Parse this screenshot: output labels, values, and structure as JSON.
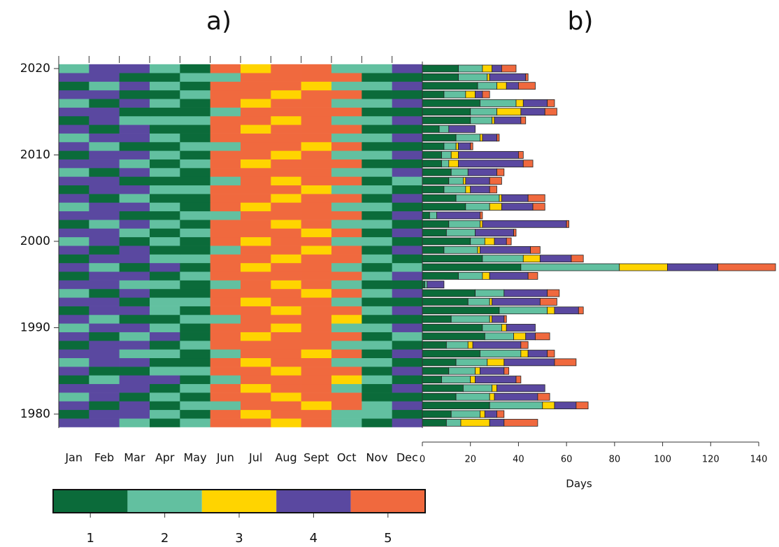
{
  "chart_data": [
    {
      "type": "heatmap",
      "title": "a)",
      "x": [
        "Jan",
        "Feb",
        "Mar",
        "Apr",
        "May",
        "Jun",
        "Jul",
        "Aug",
        "Sept",
        "Oct",
        "Nov",
        "Dec"
      ],
      "y": [
        1979,
        1980,
        1981,
        1982,
        1983,
        1984,
        1985,
        1986,
        1987,
        1988,
        1989,
        1990,
        1991,
        1992,
        1993,
        1994,
        1995,
        1996,
        1997,
        1998,
        1999,
        2000,
        2001,
        2002,
        2003,
        2004,
        2005,
        2006,
        2007,
        2008,
        2009,
        2010,
        2011,
        2012,
        2013,
        2014,
        2015,
        2016,
        2017,
        2018,
        2019,
        2020
      ],
      "ylim": [
        1978.5,
        2020.6
      ],
      "yticks": [
        1980,
        1990,
        2000,
        2010,
        2020
      ],
      "levels": [
        1,
        2,
        3,
        4,
        5
      ],
      "colors": [
        "#0b6b3a",
        "#62c0a0",
        "#ffd400",
        "#5a48a0",
        "#f0693e"
      ],
      "values": [
        [
          4,
          4,
          2,
          1,
          2,
          5,
          5,
          3,
          5,
          2,
          1,
          4
        ],
        [
          1,
          4,
          4,
          2,
          1,
          5,
          3,
          5,
          5,
          2,
          2,
          1
        ],
        [
          4,
          1,
          4,
          1,
          2,
          2,
          5,
          5,
          3,
          5,
          2,
          4
        ],
        [
          2,
          4,
          1,
          2,
          1,
          5,
          5,
          3,
          5,
          5,
          1,
          1
        ],
        [
          4,
          4,
          4,
          1,
          2,
          5,
          3,
          5,
          5,
          2,
          1,
          4
        ],
        [
          1,
          2,
          4,
          4,
          1,
          2,
          5,
          5,
          5,
          3,
          2,
          1
        ],
        [
          4,
          1,
          1,
          2,
          2,
          5,
          5,
          3,
          5,
          5,
          1,
          4
        ],
        [
          2,
          4,
          4,
          1,
          1,
          5,
          3,
          5,
          5,
          2,
          2,
          1
        ],
        [
          4,
          4,
          2,
          2,
          1,
          2,
          5,
          5,
          3,
          5,
          1,
          4
        ],
        [
          1,
          4,
          4,
          1,
          2,
          5,
          5,
          5,
          5,
          2,
          2,
          1
        ],
        [
          4,
          1,
          2,
          4,
          1,
          5,
          3,
          5,
          5,
          5,
          1,
          2
        ],
        [
          2,
          4,
          4,
          2,
          1,
          5,
          5,
          3,
          5,
          2,
          2,
          4
        ],
        [
          4,
          2,
          1,
          1,
          2,
          2,
          5,
          5,
          5,
          3,
          1,
          1
        ],
        [
          1,
          4,
          4,
          2,
          1,
          5,
          5,
          3,
          5,
          5,
          2,
          4
        ],
        [
          4,
          4,
          1,
          2,
          2,
          5,
          3,
          5,
          5,
          2,
          1,
          1
        ],
        [
          2,
          1,
          4,
          1,
          1,
          5,
          5,
          5,
          3,
          5,
          2,
          4
        ],
        [
          4,
          4,
          2,
          2,
          1,
          2,
          5,
          3,
          5,
          2,
          1,
          1
        ],
        [
          1,
          4,
          4,
          1,
          2,
          5,
          5,
          5,
          5,
          5,
          2,
          4
        ],
        [
          4,
          2,
          1,
          4,
          1,
          5,
          3,
          5,
          5,
          2,
          1,
          2
        ],
        [
          1,
          4,
          4,
          2,
          2,
          5,
          5,
          3,
          5,
          5,
          2,
          1
        ],
        [
          4,
          1,
          4,
          1,
          1,
          2,
          5,
          5,
          3,
          5,
          1,
          4
        ],
        [
          2,
          4,
          1,
          2,
          1,
          5,
          3,
          5,
          5,
          2,
          2,
          1
        ],
        [
          4,
          4,
          2,
          1,
          2,
          5,
          5,
          5,
          3,
          5,
          1,
          4
        ],
        [
          1,
          2,
          4,
          2,
          1,
          5,
          5,
          3,
          5,
          2,
          2,
          1
        ],
        [
          4,
          4,
          1,
          1,
          2,
          2,
          5,
          5,
          5,
          5,
          1,
          4
        ],
        [
          2,
          4,
          4,
          2,
          1,
          5,
          3,
          5,
          5,
          2,
          2,
          1
        ],
        [
          4,
          1,
          2,
          1,
          1,
          5,
          5,
          3,
          5,
          5,
          1,
          4
        ],
        [
          1,
          4,
          4,
          2,
          2,
          5,
          5,
          5,
          3,
          2,
          2,
          1
        ],
        [
          4,
          4,
          1,
          1,
          1,
          2,
          5,
          3,
          5,
          5,
          1,
          2
        ],
        [
          2,
          1,
          4,
          2,
          1,
          5,
          5,
          5,
          5,
          2,
          2,
          4
        ],
        [
          4,
          4,
          2,
          1,
          2,
          5,
          3,
          5,
          5,
          5,
          1,
          1
        ],
        [
          1,
          4,
          4,
          2,
          1,
          5,
          5,
          3,
          5,
          2,
          2,
          4
        ],
        [
          4,
          2,
          1,
          1,
          2,
          2,
          5,
          5,
          3,
          5,
          1,
          1
        ],
        [
          2,
          4,
          4,
          2,
          1,
          5,
          5,
          5,
          5,
          2,
          2,
          4
        ],
        [
          4,
          1,
          4,
          1,
          1,
          5,
          3,
          5,
          5,
          5,
          1,
          1
        ],
        [
          1,
          4,
          2,
          2,
          2,
          5,
          5,
          3,
          5,
          2,
          2,
          4
        ],
        [
          4,
          4,
          1,
          1,
          1,
          2,
          5,
          5,
          5,
          5,
          1,
          1
        ],
        [
          2,
          1,
          4,
          2,
          1,
          5,
          3,
          5,
          5,
          2,
          2,
          4
        ],
        [
          4,
          4,
          1,
          1,
          2,
          5,
          5,
          3,
          5,
          5,
          1,
          1
        ],
        [
          1,
          2,
          4,
          2,
          1,
          5,
          5,
          5,
          3,
          2,
          2,
          4
        ],
        [
          4,
          4,
          1,
          1,
          2,
          2,
          5,
          5,
          5,
          5,
          1,
          1
        ],
        [
          2,
          4,
          4,
          2,
          1,
          5,
          3,
          5,
          5,
          2,
          2,
          4
        ]
      ]
    },
    {
      "type": "stacked-barh",
      "title": "b)",
      "xlabel": "Days",
      "y": [
        1979,
        1980,
        1981,
        1982,
        1983,
        1984,
        1985,
        1986,
        1987,
        1988,
        1989,
        1990,
        1991,
        1992,
        1993,
        1994,
        1995,
        1996,
        1997,
        1998,
        1999,
        2000,
        2001,
        2002,
        2003,
        2004,
        2005,
        2006,
        2007,
        2008,
        2009,
        2010,
        2011,
        2012,
        2013,
        2014,
        2015,
        2016,
        2017,
        2018,
        2019,
        2020
      ],
      "ylim": [
        1978.5,
        2020.6
      ],
      "xlim": [
        0,
        140
      ],
      "xticks": [
        0,
        20,
        40,
        60,
        80,
        100,
        120,
        140
      ],
      "series": [
        {
          "color": "#0b6b3a",
          "values": [
            10,
            12,
            28,
            14,
            17,
            8,
            11,
            14,
            24,
            10,
            26,
            25,
            12,
            32,
            19,
            22,
            1,
            15,
            41,
            25,
            9,
            20,
            10,
            11,
            3,
            18,
            14,
            9,
            11,
            12,
            8,
            8,
            9,
            14,
            7,
            20,
            20,
            24,
            9,
            23,
            15,
            15
          ]
        },
        {
          "color": "#62c0a0",
          "values": [
            6,
            12,
            22,
            14,
            12,
            12,
            11,
            13,
            17,
            9,
            12,
            8,
            16,
            20,
            9,
            12,
            1,
            10,
            41,
            17,
            14,
            6,
            12,
            13,
            3,
            10,
            18,
            9,
            6,
            7,
            3,
            4,
            5,
            10,
            4,
            9,
            11,
            15,
            9,
            8,
            12,
            10
          ]
        },
        {
          "color": "#ffd400",
          "values": [
            12,
            2,
            5,
            2,
            2,
            2,
            2,
            7,
            3,
            2,
            5,
            2,
            1,
            3,
            1,
            0,
            0,
            3,
            20,
            7,
            1,
            4,
            0,
            1,
            0,
            5,
            1,
            2,
            1,
            0,
            4,
            3,
            1,
            1,
            0,
            1,
            10,
            3,
            4,
            4,
            1,
            4
          ]
        },
        {
          "color": "#5a48a0",
          "values": [
            6,
            5,
            9,
            18,
            20,
            17,
            10,
            21,
            8,
            20,
            4,
            12,
            5,
            10,
            20,
            18,
            7,
            16,
            21,
            13,
            21,
            5,
            16,
            35,
            18,
            13,
            11,
            8,
            10,
            12,
            27,
            25,
            5,
            6,
            11,
            11,
            10,
            10,
            3,
            5,
            15,
            4
          ]
        },
        {
          "color": "#f0693e",
          "values": [
            14,
            3,
            5,
            5,
            0,
            2,
            2,
            9,
            3,
            3,
            6,
            0,
            1,
            2,
            7,
            5,
            0,
            4,
            24,
            5,
            4,
            2,
            1,
            1,
            1,
            5,
            7,
            3,
            5,
            3,
            4,
            2,
            1,
            1,
            0,
            2,
            5,
            3,
            3,
            7,
            1,
            6
          ]
        }
      ]
    }
  ]
}
